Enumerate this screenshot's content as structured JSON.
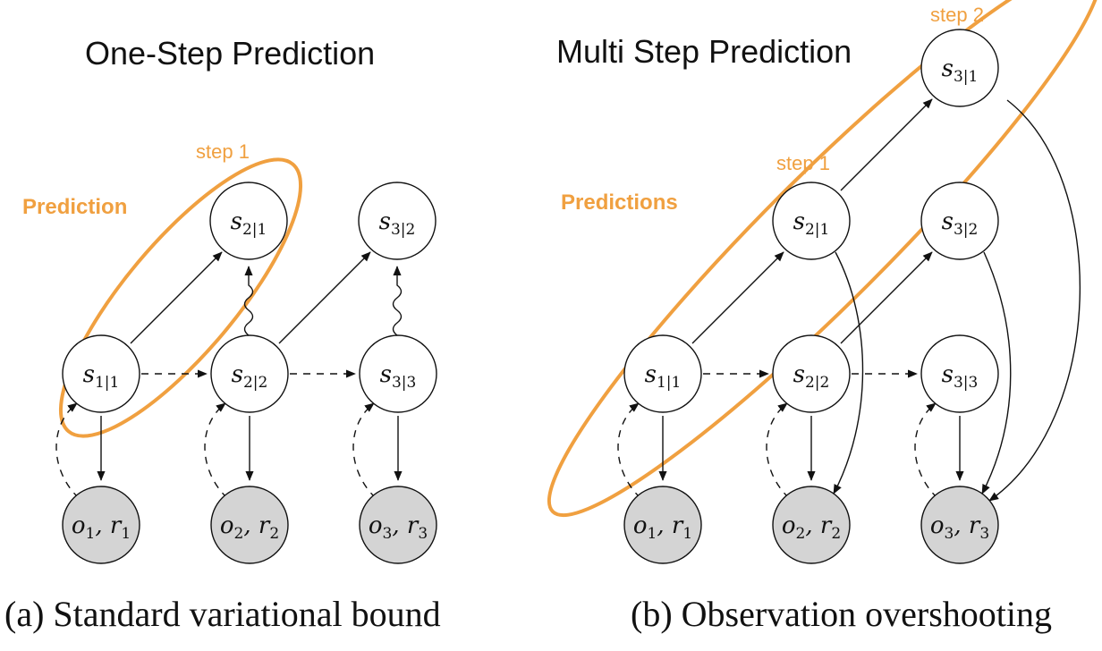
{
  "panel_a": {
    "title": "One-Step Prediction",
    "caption": "(a) Standard variational bound",
    "highlight_label": "Prediction",
    "step1_label": "step 1",
    "nodes": {
      "s11": {
        "main": "s",
        "sub": "1|1"
      },
      "s21": {
        "main": "s",
        "sub": "2|1"
      },
      "s22": {
        "main": "s",
        "sub": "2|2"
      },
      "s32": {
        "main": "s",
        "sub": "3|2"
      },
      "s33": {
        "main": "s",
        "sub": "3|3"
      },
      "o1": {
        "main": "o",
        "sub": "1",
        "sep": ", ",
        "main2": "r",
        "sub2": "1"
      },
      "o2": {
        "main": "o",
        "sub": "2",
        "sep": ", ",
        "main2": "r",
        "sub2": "2"
      },
      "o3": {
        "main": "o",
        "sub": "3",
        "sep": ", ",
        "main2": "r",
        "sub2": "3"
      }
    }
  },
  "panel_b": {
    "title": "Multi Step Prediction",
    "caption": "(b) Observation overshooting",
    "highlight_label": "Predictions",
    "step1_label": "step 1",
    "step2_label": "step 2",
    "nodes": {
      "s11": {
        "main": "s",
        "sub": "1|1"
      },
      "s21": {
        "main": "s",
        "sub": "2|1"
      },
      "s31": {
        "main": "s",
        "sub": "3|1"
      },
      "s22": {
        "main": "s",
        "sub": "2|2"
      },
      "s32": {
        "main": "s",
        "sub": "3|2"
      },
      "s33": {
        "main": "s",
        "sub": "3|3"
      },
      "o1": {
        "main": "o",
        "sub": "1",
        "sep": ", ",
        "main2": "r",
        "sub2": "1"
      },
      "o2": {
        "main": "o",
        "sub": "2",
        "sep": ", ",
        "main2": "r",
        "sub2": "2"
      },
      "o3": {
        "main": "o",
        "sub": "3",
        "sep": ", ",
        "main2": "r",
        "sub2": "3"
      }
    }
  },
  "colors": {
    "highlight": "#f0a040",
    "observed_fill": "#d4d4d4",
    "node_stroke": "#111111"
  }
}
